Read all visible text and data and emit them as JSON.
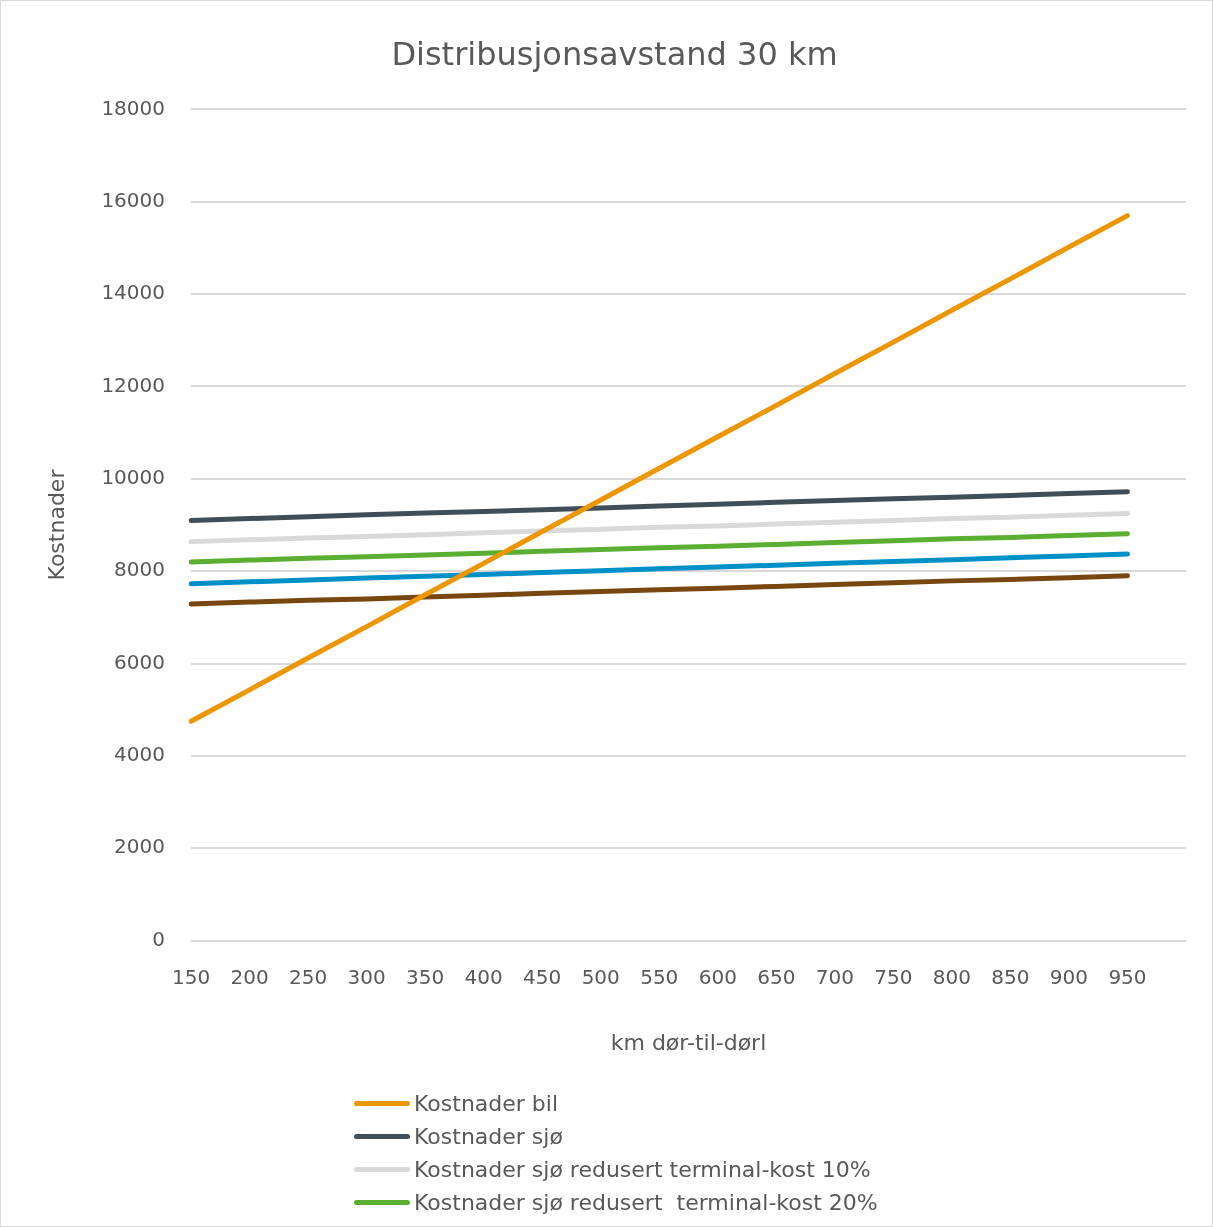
{
  "chart_data": {
    "type": "line",
    "title": "Distribusjonsavstand 30 km",
    "xlabel": "km dør-til-dørl",
    "ylabel": "Kostnader",
    "categories": [
      "150",
      "200",
      "250",
      "300",
      "350",
      "400",
      "450",
      "500",
      "550",
      "600",
      "650",
      "700",
      "750",
      "800",
      "850",
      "900",
      "950",
      null
    ],
    "ylim": [
      0,
      18000
    ],
    "yticks": [
      0,
      2000,
      4000,
      6000,
      8000,
      10000,
      12000,
      14000,
      16000,
      18000
    ],
    "grid": "y",
    "legend": "bottom",
    "marker": "none",
    "line_style": "solid",
    "series": [
      {
        "name": "Kostnader bil",
        "color": "#ee9600",
        "values": [
          4750,
          5430,
          6120,
          6800,
          7490,
          8170,
          8860,
          9540,
          10230,
          10910,
          11590,
          12280,
          12960,
          13650,
          14330,
          15020,
          15700,
          null
        ]
      },
      {
        "name": "Kostnader sjø",
        "color": "#404e58",
        "values": [
          9100,
          9140,
          9180,
          9220,
          9260,
          9290,
          9330,
          9370,
          9410,
          9450,
          9490,
          9530,
          9570,
          9600,
          9640,
          9680,
          9720,
          null
        ]
      },
      {
        "name": "Kostnader sjø redusert terminal-kost 10%",
        "color": "#d9d9d9",
        "values": [
          8640,
          8680,
          8720,
          8750,
          8790,
          8830,
          8870,
          8910,
          8950,
          8980,
          9020,
          9060,
          9100,
          9140,
          9170,
          9210,
          9250,
          null
        ]
      },
      {
        "name": "Kostnader sjø redusert  terminal-kost 20%",
        "color": "#5aaf32",
        "values": [
          8200,
          8240,
          8280,
          8310,
          8350,
          8390,
          8430,
          8470,
          8510,
          8540,
          8580,
          8620,
          8660,
          8700,
          8730,
          8770,
          8810,
          null
        ]
      },
      {
        "color": "#0090c8",
        "values": [
          7730,
          7770,
          7810,
          7850,
          7890,
          7930,
          7970,
          8010,
          8050,
          8090,
          8130,
          8170,
          8210,
          8250,
          8290,
          8330,
          8370,
          null
        ]
      },
      {
        "color": "#78460f",
        "values": [
          7290,
          7330,
          7370,
          7400,
          7440,
          7480,
          7520,
          7560,
          7600,
          7630,
          7670,
          7710,
          7750,
          7790,
          7820,
          7860,
          7900,
          null
        ]
      }
    ]
  }
}
